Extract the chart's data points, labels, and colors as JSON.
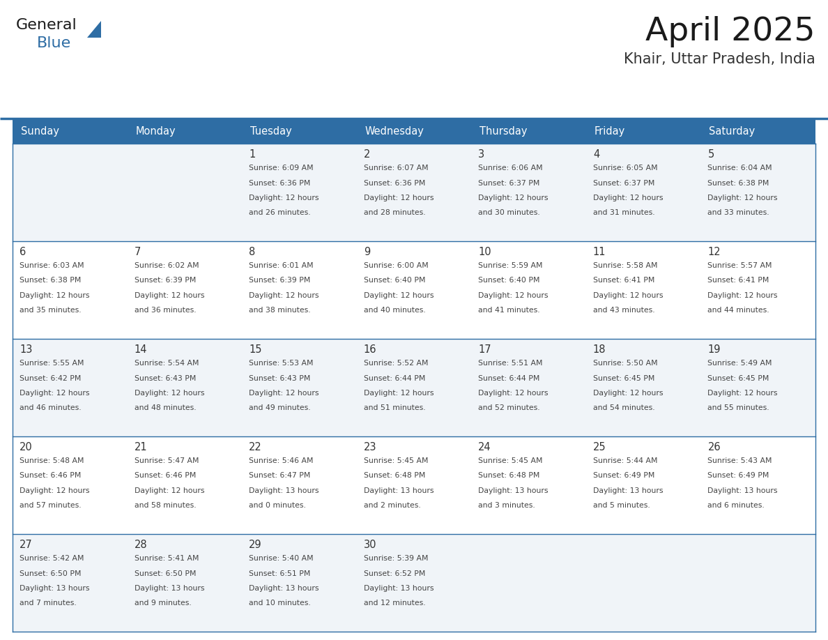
{
  "title": "April 2025",
  "subtitle": "Khair, Uttar Pradesh, India",
  "header_bg": "#2E6DA4",
  "header_text": "#FFFFFF",
  "row_bg_odd": "#F0F4F8",
  "row_bg_even": "#FFFFFF",
  "grid_line_color": "#2E6DA4",
  "date_color": "#333333",
  "text_color": "#444444",
  "background": "#FFFFFF",
  "day_names": [
    "Sunday",
    "Monday",
    "Tuesday",
    "Wednesday",
    "Thursday",
    "Friday",
    "Saturday"
  ],
  "weeks": [
    [
      {
        "date": "",
        "lines": []
      },
      {
        "date": "",
        "lines": []
      },
      {
        "date": "1",
        "lines": [
          "Sunrise: 6:09 AM",
          "Sunset: 6:36 PM",
          "Daylight: 12 hours",
          "and 26 minutes."
        ]
      },
      {
        "date": "2",
        "lines": [
          "Sunrise: 6:07 AM",
          "Sunset: 6:36 PM",
          "Daylight: 12 hours",
          "and 28 minutes."
        ]
      },
      {
        "date": "3",
        "lines": [
          "Sunrise: 6:06 AM",
          "Sunset: 6:37 PM",
          "Daylight: 12 hours",
          "and 30 minutes."
        ]
      },
      {
        "date": "4",
        "lines": [
          "Sunrise: 6:05 AM",
          "Sunset: 6:37 PM",
          "Daylight: 12 hours",
          "and 31 minutes."
        ]
      },
      {
        "date": "5",
        "lines": [
          "Sunrise: 6:04 AM",
          "Sunset: 6:38 PM",
          "Daylight: 12 hours",
          "and 33 minutes."
        ]
      }
    ],
    [
      {
        "date": "6",
        "lines": [
          "Sunrise: 6:03 AM",
          "Sunset: 6:38 PM",
          "Daylight: 12 hours",
          "and 35 minutes."
        ]
      },
      {
        "date": "7",
        "lines": [
          "Sunrise: 6:02 AM",
          "Sunset: 6:39 PM",
          "Daylight: 12 hours",
          "and 36 minutes."
        ]
      },
      {
        "date": "8",
        "lines": [
          "Sunrise: 6:01 AM",
          "Sunset: 6:39 PM",
          "Daylight: 12 hours",
          "and 38 minutes."
        ]
      },
      {
        "date": "9",
        "lines": [
          "Sunrise: 6:00 AM",
          "Sunset: 6:40 PM",
          "Daylight: 12 hours",
          "and 40 minutes."
        ]
      },
      {
        "date": "10",
        "lines": [
          "Sunrise: 5:59 AM",
          "Sunset: 6:40 PM",
          "Daylight: 12 hours",
          "and 41 minutes."
        ]
      },
      {
        "date": "11",
        "lines": [
          "Sunrise: 5:58 AM",
          "Sunset: 6:41 PM",
          "Daylight: 12 hours",
          "and 43 minutes."
        ]
      },
      {
        "date": "12",
        "lines": [
          "Sunrise: 5:57 AM",
          "Sunset: 6:41 PM",
          "Daylight: 12 hours",
          "and 44 minutes."
        ]
      }
    ],
    [
      {
        "date": "13",
        "lines": [
          "Sunrise: 5:55 AM",
          "Sunset: 6:42 PM",
          "Daylight: 12 hours",
          "and 46 minutes."
        ]
      },
      {
        "date": "14",
        "lines": [
          "Sunrise: 5:54 AM",
          "Sunset: 6:43 PM",
          "Daylight: 12 hours",
          "and 48 minutes."
        ]
      },
      {
        "date": "15",
        "lines": [
          "Sunrise: 5:53 AM",
          "Sunset: 6:43 PM",
          "Daylight: 12 hours",
          "and 49 minutes."
        ]
      },
      {
        "date": "16",
        "lines": [
          "Sunrise: 5:52 AM",
          "Sunset: 6:44 PM",
          "Daylight: 12 hours",
          "and 51 minutes."
        ]
      },
      {
        "date": "17",
        "lines": [
          "Sunrise: 5:51 AM",
          "Sunset: 6:44 PM",
          "Daylight: 12 hours",
          "and 52 minutes."
        ]
      },
      {
        "date": "18",
        "lines": [
          "Sunrise: 5:50 AM",
          "Sunset: 6:45 PM",
          "Daylight: 12 hours",
          "and 54 minutes."
        ]
      },
      {
        "date": "19",
        "lines": [
          "Sunrise: 5:49 AM",
          "Sunset: 6:45 PM",
          "Daylight: 12 hours",
          "and 55 minutes."
        ]
      }
    ],
    [
      {
        "date": "20",
        "lines": [
          "Sunrise: 5:48 AM",
          "Sunset: 6:46 PM",
          "Daylight: 12 hours",
          "and 57 minutes."
        ]
      },
      {
        "date": "21",
        "lines": [
          "Sunrise: 5:47 AM",
          "Sunset: 6:46 PM",
          "Daylight: 12 hours",
          "and 58 minutes."
        ]
      },
      {
        "date": "22",
        "lines": [
          "Sunrise: 5:46 AM",
          "Sunset: 6:47 PM",
          "Daylight: 13 hours",
          "and 0 minutes."
        ]
      },
      {
        "date": "23",
        "lines": [
          "Sunrise: 5:45 AM",
          "Sunset: 6:48 PM",
          "Daylight: 13 hours",
          "and 2 minutes."
        ]
      },
      {
        "date": "24",
        "lines": [
          "Sunrise: 5:45 AM",
          "Sunset: 6:48 PM",
          "Daylight: 13 hours",
          "and 3 minutes."
        ]
      },
      {
        "date": "25",
        "lines": [
          "Sunrise: 5:44 AM",
          "Sunset: 6:49 PM",
          "Daylight: 13 hours",
          "and 5 minutes."
        ]
      },
      {
        "date": "26",
        "lines": [
          "Sunrise: 5:43 AM",
          "Sunset: 6:49 PM",
          "Daylight: 13 hours",
          "and 6 minutes."
        ]
      }
    ],
    [
      {
        "date": "27",
        "lines": [
          "Sunrise: 5:42 AM",
          "Sunset: 6:50 PM",
          "Daylight: 13 hours",
          "and 7 minutes."
        ]
      },
      {
        "date": "28",
        "lines": [
          "Sunrise: 5:41 AM",
          "Sunset: 6:50 PM",
          "Daylight: 13 hours",
          "and 9 minutes."
        ]
      },
      {
        "date": "29",
        "lines": [
          "Sunrise: 5:40 AM",
          "Sunset: 6:51 PM",
          "Daylight: 13 hours",
          "and 10 minutes."
        ]
      },
      {
        "date": "30",
        "lines": [
          "Sunrise: 5:39 AM",
          "Sunset: 6:52 PM",
          "Daylight: 13 hours",
          "and 12 minutes."
        ]
      },
      {
        "date": "",
        "lines": []
      },
      {
        "date": "",
        "lines": []
      },
      {
        "date": "",
        "lines": []
      }
    ]
  ]
}
